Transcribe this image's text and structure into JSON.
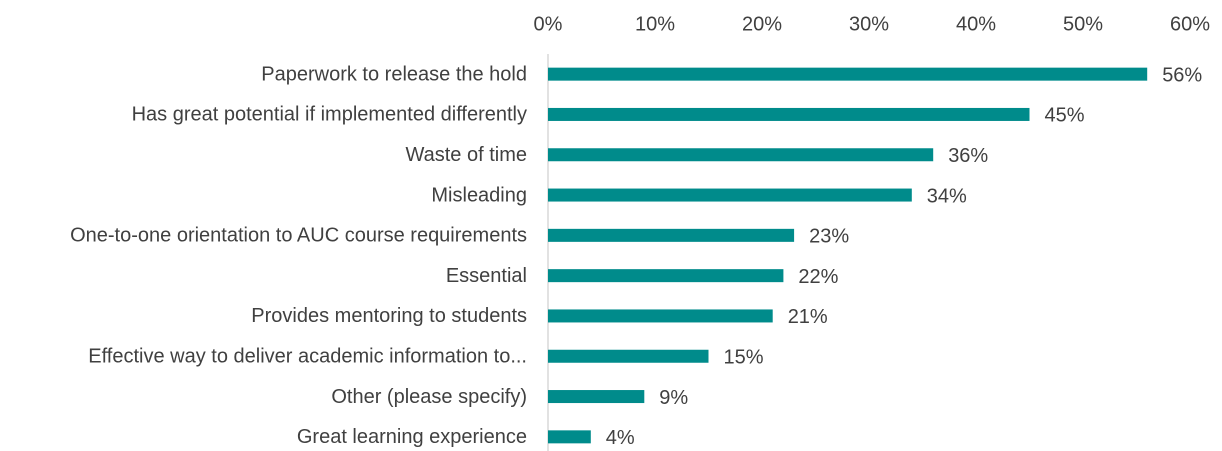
{
  "chart_data": {
    "type": "bar",
    "orientation": "horizontal",
    "categories": [
      "Paperwork to release the hold",
      "Has great potential if implemented differently",
      "Waste of time",
      "Misleading",
      "One-to-one orientation to AUC course requirements",
      "Essential",
      "Provides mentoring to students",
      "Effective way to deliver academic information to...",
      "Other (please specify)",
      "Great learning experience"
    ],
    "values": [
      56,
      45,
      36,
      34,
      23,
      22,
      21,
      15,
      9,
      4
    ],
    "value_labels": [
      "56%",
      "45%",
      "36%",
      "34%",
      "23%",
      "22%",
      "21%",
      "15%",
      "9%",
      "4%"
    ],
    "color": "#008b8b",
    "xlim": [
      0,
      60
    ],
    "xticks": [
      {
        "value": 0,
        "label": "0%"
      },
      {
        "value": 10,
        "label": "10%"
      },
      {
        "value": 20,
        "label": "20%"
      },
      {
        "value": 30,
        "label": "30%"
      },
      {
        "value": 40,
        "label": "40%"
      },
      {
        "value": 50,
        "label": "50%"
      },
      {
        "value": 60,
        "label": "60%"
      }
    ],
    "grid": false
  }
}
